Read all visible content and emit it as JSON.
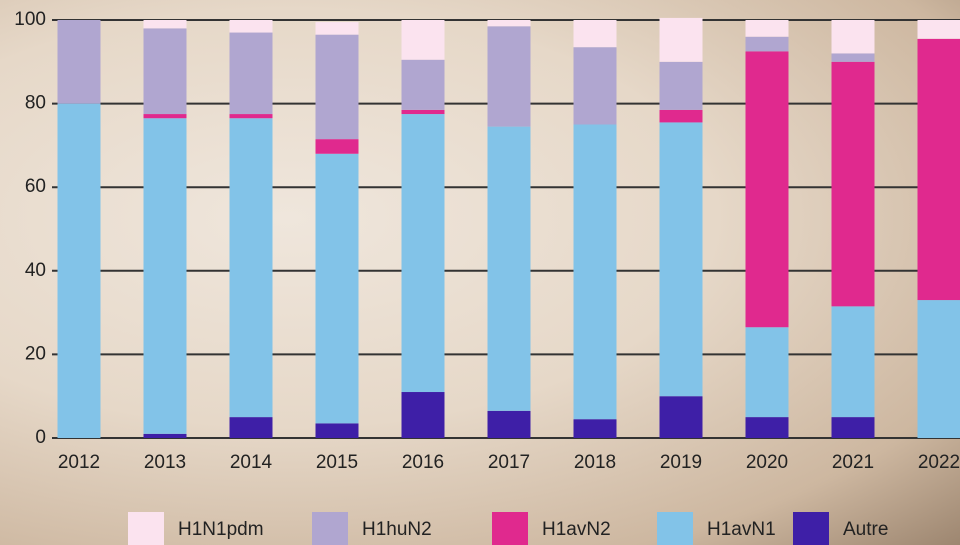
{
  "chart_data": {
    "type": "stacked_bar",
    "categories": [
      "2012",
      "2013",
      "2014",
      "2015",
      "2016",
      "2017",
      "2018",
      "2019",
      "2020",
      "2021",
      "2022"
    ],
    "series": [
      {
        "name": "H1N1pdm",
        "color": "#fbe3ef",
        "values": [
          0,
          2,
          3,
          3,
          9.5,
          1.5,
          6.5,
          10.5,
          4,
          8,
          4.5
        ]
      },
      {
        "name": "H1huN2",
        "color": "#b0a6d0",
        "values": [
          20,
          20.5,
          19.5,
          25,
          12,
          24,
          18.5,
          11.5,
          3.5,
          2,
          0
        ]
      },
      {
        "name": "H1avN2",
        "color": "#e0298e",
        "values": [
          0,
          1,
          1,
          3.5,
          1,
          0,
          0,
          3,
          66,
          58.5,
          62.5
        ]
      },
      {
        "name": "H1avN1",
        "color": "#82c3e8",
        "values": [
          80,
          75.5,
          71.5,
          64.5,
          66.5,
          68,
          70.5,
          65.5,
          21.5,
          26.5,
          33
        ]
      },
      {
        "name": "Autre",
        "color": "#3e1fa7",
        "values": [
          0,
          1,
          5,
          3.5,
          11,
          6.5,
          4.5,
          10,
          5,
          5,
          0
        ]
      }
    ],
    "ylim": [
      0,
      100
    ],
    "yticks": [
      0,
      20,
      40,
      60,
      80,
      100
    ],
    "grid": true
  }
}
